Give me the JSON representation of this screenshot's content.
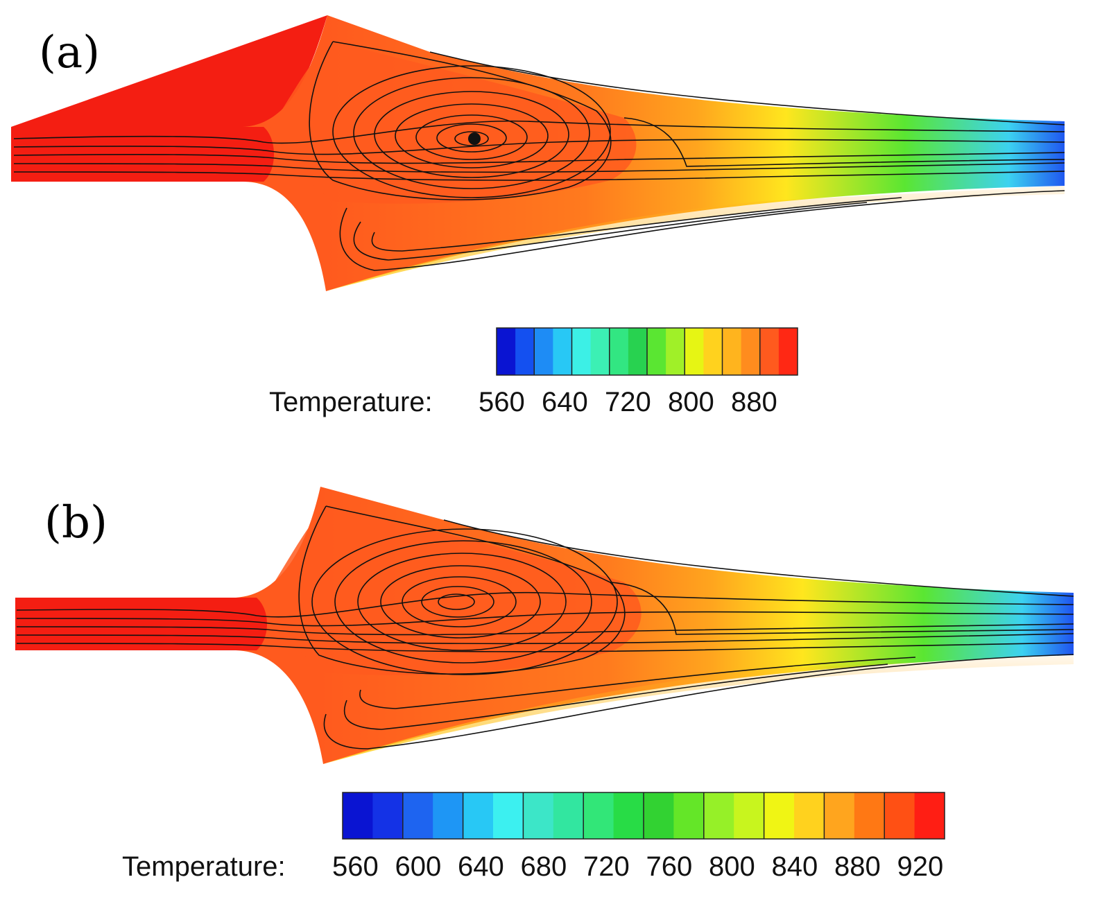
{
  "panels": [
    {
      "label": "(a)",
      "colorbar": {
        "title": "Temperature:",
        "tick_labels": [
          "560",
          "640",
          "720",
          "800",
          "880"
        ],
        "colors": [
          "#0a14d2",
          "#1450f0",
          "#1e8cf5",
          "#28c8f5",
          "#3cf0e6",
          "#3cf0b4",
          "#32e682",
          "#28d250",
          "#5ae632",
          "#a0f028",
          "#e6f514",
          "#ffd21e",
          "#ffb41e",
          "#ff8c1e",
          "#ff5a1e",
          "#ff2814"
        ]
      }
    },
    {
      "label": "(b)",
      "colorbar": {
        "title": "Temperature:",
        "tick_labels": [
          "560",
          "600",
          "640",
          "680",
          "720",
          "760",
          "800",
          "840",
          "880",
          "920"
        ],
        "colors": [
          "#0a14d2",
          "#1432e6",
          "#1e64f0",
          "#1e96f5",
          "#28c8f5",
          "#3cf0f0",
          "#3ce6c8",
          "#32e6a0",
          "#32e678",
          "#28dc46",
          "#32d232",
          "#64e628",
          "#96f028",
          "#c8f51e",
          "#f0f514",
          "#ffd21e",
          "#ffa51e",
          "#ff7814",
          "#ff5014",
          "#ff1e14"
        ]
      }
    }
  ],
  "field_colors": {
    "hot": "#f41e12",
    "warm": "#ff5a1e",
    "orange": "#ffa51e",
    "yellow": "#ffe61e",
    "green": "#5ae632",
    "cyan": "#3cd2f0",
    "blue": "#1e50f0",
    "streamline": "#111111"
  }
}
